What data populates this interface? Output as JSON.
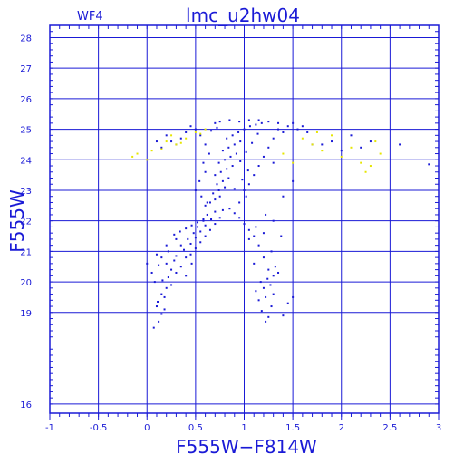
{
  "chart_data": {
    "type": "scatter",
    "chip_label": "WF4",
    "title": "lmc_u2hw04",
    "xlabel": "F555W−F814W",
    "ylabel": "F555W",
    "xlim": [
      -1,
      3
    ],
    "ylim": [
      28.4,
      15.7
    ],
    "y_inverted": true,
    "grid": true,
    "xticks_major": [
      -1,
      -0.5,
      0,
      0.5,
      1,
      1.5,
      2,
      2.5,
      3
    ],
    "xtick_labels": [
      "-1",
      "-0.5",
      "0",
      "0.5",
      "1",
      "1.5",
      "2",
      "2.5",
      "3"
    ],
    "yticks_major": [
      16,
      19,
      20,
      21,
      22,
      23,
      24,
      25,
      26,
      27,
      28
    ],
    "ytick_labels": [
      "16",
      "19",
      "20",
      "21",
      "22",
      "23",
      "24",
      "25",
      "26",
      "27",
      "28"
    ],
    "colors": {
      "primary": "#1a1ad6",
      "secondary": "#e6e600",
      "background": "#ffffff"
    },
    "series": [
      {
        "color": "#1a1ad6",
        "points": [
          [
            0.07,
            18.5
          ],
          [
            0.12,
            18.7
          ],
          [
            0.15,
            18.95
          ],
          [
            0.18,
            19.1
          ],
          [
            0.11,
            19.35
          ],
          [
            0.15,
            19.6
          ],
          [
            0.2,
            19.8
          ],
          [
            0.08,
            20.0
          ],
          [
            0.16,
            20.05
          ],
          [
            0.22,
            20.15
          ],
          [
            0.3,
            20.3
          ],
          [
            0.25,
            20.4
          ],
          [
            0.35,
            20.5
          ],
          [
            0.12,
            20.55
          ],
          [
            0.2,
            20.6
          ],
          [
            0.28,
            20.7
          ],
          [
            0.15,
            20.8
          ],
          [
            0.3,
            20.85
          ],
          [
            0.4,
            20.8
          ],
          [
            0.45,
            20.9
          ],
          [
            0.22,
            21.0
          ],
          [
            0.38,
            21.05
          ],
          [
            0.5,
            21.1
          ],
          [
            0.35,
            21.2
          ],
          [
            0.45,
            21.25
          ],
          [
            0.55,
            21.3
          ],
          [
            0.42,
            21.4
          ],
          [
            0.5,
            21.45
          ],
          [
            0.6,
            21.5
          ],
          [
            0.48,
            21.6
          ],
          [
            0.55,
            21.65
          ],
          [
            0.65,
            21.7
          ],
          [
            0.52,
            21.8
          ],
          [
            0.6,
            21.85
          ],
          [
            0.7,
            21.9
          ],
          [
            0.58,
            22.0
          ],
          [
            0.66,
            22.05
          ],
          [
            0.75,
            22.1
          ],
          [
            0.62,
            22.2
          ],
          [
            0.7,
            22.3
          ],
          [
            0.78,
            22.35
          ],
          [
            0.85,
            22.4
          ],
          [
            0.9,
            22.25
          ],
          [
            0.95,
            22.1
          ],
          [
            1.0,
            21.9
          ],
          [
            1.05,
            21.7
          ],
          [
            1.1,
            21.5
          ],
          [
            0.28,
            21.55
          ],
          [
            0.34,
            21.65
          ],
          [
            0.4,
            21.75
          ],
          [
            0.46,
            21.85
          ],
          [
            0.52,
            21.95
          ],
          [
            0.58,
            22.05
          ],
          [
            1.22,
            18.7
          ],
          [
            1.25,
            18.85
          ],
          [
            1.18,
            19.05
          ],
          [
            1.28,
            19.2
          ],
          [
            1.15,
            19.4
          ],
          [
            1.22,
            19.5
          ],
          [
            1.3,
            19.6
          ],
          [
            1.12,
            19.7
          ],
          [
            1.2,
            19.8
          ],
          [
            1.27,
            19.9
          ],
          [
            1.17,
            20.0
          ],
          [
            1.24,
            20.1
          ],
          [
            1.3,
            20.2
          ],
          [
            1.35,
            20.3
          ],
          [
            1.25,
            20.4
          ],
          [
            1.32,
            20.5
          ],
          [
            1.1,
            20.6
          ],
          [
            1.2,
            20.8
          ],
          [
            1.28,
            21.0
          ],
          [
            1.15,
            21.2
          ],
          [
            1.05,
            21.4
          ],
          [
            1.2,
            21.6
          ],
          [
            1.12,
            21.8
          ],
          [
            1.3,
            22.0
          ],
          [
            1.22,
            22.2
          ],
          [
            1.38,
            21.5
          ],
          [
            1.45,
            19.3
          ],
          [
            1.4,
            18.9
          ],
          [
            1.5,
            19.5
          ],
          [
            0.6,
            22.5
          ],
          [
            0.65,
            22.6
          ],
          [
            0.7,
            22.7
          ],
          [
            0.75,
            22.8
          ],
          [
            0.68,
            22.9
          ],
          [
            0.74,
            23.0
          ],
          [
            0.8,
            23.1
          ],
          [
            0.72,
            23.2
          ],
          [
            0.78,
            23.3
          ],
          [
            0.84,
            23.4
          ],
          [
            0.7,
            23.5
          ],
          [
            0.76,
            23.6
          ],
          [
            0.82,
            23.7
          ],
          [
            0.88,
            23.8
          ],
          [
            0.74,
            23.9
          ],
          [
            0.8,
            24.0
          ],
          [
            0.86,
            24.1
          ],
          [
            0.92,
            24.2
          ],
          [
            0.78,
            24.3
          ],
          [
            0.84,
            24.4
          ],
          [
            0.9,
            24.5
          ],
          [
            0.96,
            24.6
          ],
          [
            0.82,
            24.7
          ],
          [
            0.88,
            24.8
          ],
          [
            0.94,
            24.9
          ],
          [
            1.0,
            25.0
          ],
          [
            1.06,
            25.1
          ],
          [
            1.12,
            25.15
          ],
          [
            1.18,
            25.2
          ],
          [
            0.62,
            22.6
          ],
          [
            0.56,
            22.8
          ],
          [
            0.5,
            23.0
          ],
          [
            0.54,
            23.3
          ],
          [
            0.6,
            23.6
          ],
          [
            0.58,
            23.9
          ],
          [
            0.64,
            24.2
          ],
          [
            0.6,
            24.5
          ],
          [
            0.55,
            24.8
          ],
          [
            0.5,
            25.0
          ],
          [
            0.45,
            25.1
          ],
          [
            0.4,
            24.9
          ],
          [
            0.35,
            24.7
          ],
          [
            0.3,
            24.5
          ],
          [
            0.25,
            24.6
          ],
          [
            0.2,
            24.8
          ],
          [
            0.15,
            24.4
          ],
          [
            0.1,
            24.6
          ],
          [
            1.0,
            23.0
          ],
          [
            1.05,
            23.2
          ],
          [
            1.1,
            23.5
          ],
          [
            1.15,
            23.8
          ],
          [
            1.2,
            24.1
          ],
          [
            1.25,
            24.4
          ],
          [
            1.3,
            24.7
          ],
          [
            1.35,
            25.0
          ],
          [
            1.4,
            24.9
          ],
          [
            1.45,
            25.1
          ],
          [
            1.5,
            25.2
          ],
          [
            1.55,
            25.0
          ],
          [
            1.6,
            25.1
          ],
          [
            1.65,
            24.9
          ],
          [
            1.7,
            24.5
          ],
          [
            1.8,
            24.5
          ],
          [
            1.9,
            24.6
          ],
          [
            2.0,
            24.3
          ],
          [
            2.1,
            24.8
          ],
          [
            2.2,
            24.4
          ],
          [
            2.3,
            24.6
          ],
          [
            2.6,
            24.5
          ],
          [
            2.9,
            23.85
          ],
          [
            1.4,
            22.8
          ],
          [
            1.5,
            23.3
          ],
          [
            1.3,
            23.9
          ],
          [
            0.95,
            22.6
          ],
          [
            1.02,
            22.8
          ],
          [
            0.9,
            23.05
          ],
          [
            0.98,
            23.35
          ],
          [
            1.04,
            23.65
          ],
          [
            0.96,
            23.95
          ],
          [
            1.02,
            24.25
          ],
          [
            1.08,
            24.55
          ],
          [
            1.14,
            24.85
          ],
          [
            0.7,
            25.2
          ],
          [
            0.75,
            25.25
          ],
          [
            0.85,
            25.3
          ],
          [
            0.95,
            25.25
          ],
          [
            1.05,
            25.3
          ],
          [
            1.15,
            25.3
          ],
          [
            1.25,
            25.25
          ],
          [
            1.35,
            25.2
          ],
          [
            0.66,
            24.95
          ],
          [
            0.72,
            25.05
          ],
          [
            0.3,
            21.4
          ],
          [
            0.2,
            21.2
          ],
          [
            0.1,
            20.9
          ],
          [
            0.05,
            20.3
          ],
          [
            0.25,
            19.9
          ],
          [
            0.18,
            19.5
          ],
          [
            0.1,
            19.2
          ],
          [
            0.0,
            20.6
          ],
          [
            0.4,
            20.2
          ],
          [
            0.46,
            20.6
          ]
        ]
      },
      {
        "color": "#e6e600",
        "points": [
          [
            -0.15,
            24.1
          ],
          [
            -0.1,
            24.2
          ],
          [
            0.0,
            24.0
          ],
          [
            0.05,
            24.3
          ],
          [
            0.2,
            24.6
          ],
          [
            0.25,
            24.8
          ],
          [
            0.3,
            24.5
          ],
          [
            0.4,
            24.7
          ],
          [
            0.5,
            24.9
          ],
          [
            0.6,
            25.0
          ],
          [
            1.6,
            24.7
          ],
          [
            1.7,
            24.5
          ],
          [
            1.8,
            24.3
          ],
          [
            1.9,
            24.8
          ],
          [
            2.0,
            24.1
          ],
          [
            2.1,
            24.4
          ],
          [
            2.2,
            23.9
          ],
          [
            2.25,
            23.6
          ],
          [
            2.3,
            23.8
          ],
          [
            2.35,
            24.6
          ],
          [
            1.5,
            23.9
          ],
          [
            1.4,
            24.2
          ],
          [
            1.75,
            24.9
          ],
          [
            2.4,
            24.2
          ],
          [
            0.15,
            24.35
          ],
          [
            0.35,
            24.55
          ],
          [
            0.55,
            24.85
          ]
        ]
      }
    ]
  }
}
